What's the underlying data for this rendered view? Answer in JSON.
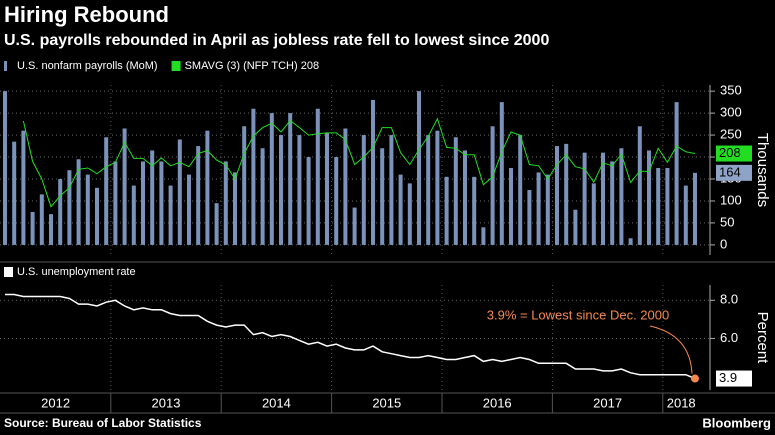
{
  "header": {
    "title": "Hiring Rebound",
    "subtitle": "U.S. payrolls rebounded in April as jobless rate fell to lowest since 2000"
  },
  "footer": {
    "source": "Source: Bureau of Labor Statistics",
    "brand": "Bloomberg"
  },
  "chart_data": [
    {
      "type": "bar",
      "y_label": "Thousands",
      "ylim": [
        -23,
        364
      ],
      "yticks": [
        0,
        50,
        100,
        150,
        200,
        250,
        300,
        350
      ],
      "grid": true,
      "series": [
        {
          "name": "U.S. nonfarm payrolls (MoM)",
          "type": "bar",
          "color": "#7b93bb",
          "values": [
            350,
            235,
            260,
            75,
            115,
            70,
            150,
            170,
            195,
            160,
            130,
            245,
            190,
            265,
            135,
            190,
            215,
            190,
            135,
            240,
            160,
            225,
            260,
            95,
            190,
            165,
            270,
            310,
            220,
            300,
            250,
            300,
            250,
            200,
            310,
            255,
            200,
            265,
            85,
            250,
            330,
            220,
            250,
            160,
            140,
            350,
            250,
            260,
            155,
            245,
            215,
            155,
            40,
            270,
            325,
            175,
            250,
            125,
            165,
            160,
            225,
            230,
            80,
            210,
            140,
            210,
            190,
            220,
            15,
            270,
            215,
            175,
            175,
            325,
            135,
            164
          ]
        },
        {
          "name": "SMAVG (3) (NFP TCH) 208",
          "type": "line",
          "color": "#22dd22",
          "values": [
            null,
            null,
            282,
            190,
            150,
            87,
            112,
            130,
            172,
            175,
            162,
            178,
            188,
            233,
            197,
            197,
            180,
            198,
            180,
            188,
            178,
            208,
            215,
            193,
            182,
            150,
            208,
            248,
            267,
            277,
            257,
            283,
            267,
            250,
            253,
            255,
            255,
            240,
            183,
            200,
            222,
            267,
            267,
            210,
            183,
            217,
            247,
            287,
            222,
            220,
            205,
            205,
            137,
            155,
            212,
            257,
            250,
            183,
            180,
            150,
            183,
            205,
            178,
            173,
            143,
            187,
            180,
            207,
            142,
            168,
            167,
            220,
            188,
            225,
            212,
            208
          ]
        }
      ]
    },
    {
      "type": "line",
      "y_label": "Percent",
      "ylim": [
        3.3,
        8.8
      ],
      "yticks": [
        {
          "value": 8,
          "label": "8.0"
        },
        {
          "value": 6,
          "label": "6.0"
        }
      ],
      "grid": true,
      "annotation": "3.9% = Lowest since Dec. 2000",
      "xticks": [
        "2012",
        "2013",
        "2014",
        "2015",
        "2016",
        "2017",
        "2018"
      ],
      "series": [
        {
          "name": "U.S. unemployment rate",
          "color": "#ffffff",
          "values": [
            8.3,
            8.3,
            8.2,
            8.2,
            8.2,
            8.2,
            8.2,
            8.1,
            7.8,
            7.8,
            7.7,
            7.9,
            8.0,
            7.7,
            7.5,
            7.6,
            7.5,
            7.5,
            7.3,
            7.2,
            7.2,
            7.2,
            6.9,
            6.7,
            6.6,
            6.7,
            6.7,
            6.2,
            6.3,
            6.1,
            6.2,
            6.1,
            5.9,
            5.7,
            5.8,
            5.6,
            5.7,
            5.5,
            5.4,
            5.4,
            5.6,
            5.3,
            5.2,
            5.1,
            5.0,
            5.0,
            5.1,
            5.0,
            4.9,
            4.9,
            5.0,
            5.1,
            4.8,
            4.9,
            4.8,
            4.9,
            5.0,
            4.9,
            4.7,
            4.7,
            4.7,
            4.7,
            4.4,
            4.4,
            4.4,
            4.3,
            4.3,
            4.4,
            4.2,
            4.1,
            4.1,
            4.1,
            4.1,
            4.1,
            4.1,
            3.9
          ]
        }
      ]
    }
  ]
}
